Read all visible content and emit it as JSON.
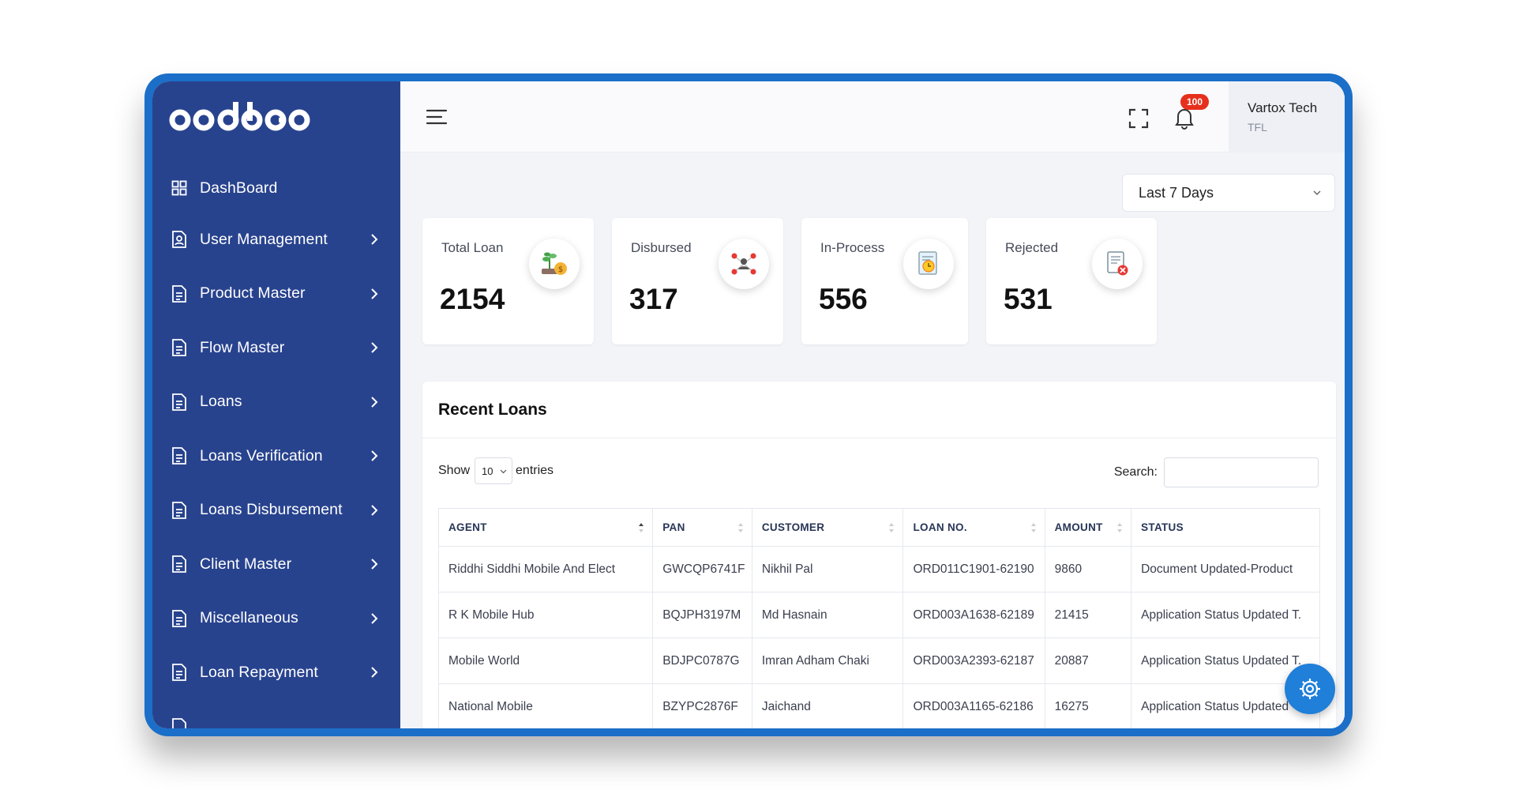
{
  "app": {
    "logo_text": "oodbogo"
  },
  "sidebar": {
    "items": [
      {
        "label": "DashBoard",
        "icon": "grid-icon"
      },
      {
        "label": "User Management",
        "icon": "user-doc-icon"
      },
      {
        "label": "Product Master",
        "icon": "document-icon"
      },
      {
        "label": "Flow Master",
        "icon": "document-icon"
      },
      {
        "label": "Loans",
        "icon": "document-icon"
      },
      {
        "label": "Loans Verification",
        "icon": "document-icon"
      },
      {
        "label": "Loans Disbursement",
        "icon": "document-icon"
      },
      {
        "label": "Client Master",
        "icon": "document-icon"
      },
      {
        "label": "Miscellaneous",
        "icon": "document-icon"
      },
      {
        "label": "Loan Repayment",
        "icon": "document-icon"
      }
    ]
  },
  "header": {
    "notifications_count": "100",
    "user_name": "Vartox Tech",
    "user_org": "TFL"
  },
  "filters": {
    "range": "Last 7 Days"
  },
  "stats": [
    {
      "label": "Total Loan",
      "value": "2154",
      "icon": "money-plant-icon"
    },
    {
      "label": "Disbursed",
      "value": "317",
      "icon": "network-people-icon"
    },
    {
      "label": "In-Process",
      "value": "556",
      "icon": "clock-document-icon"
    },
    {
      "label": "Rejected",
      "value": "531",
      "icon": "rejected-document-icon"
    }
  ],
  "recent_loans": {
    "title": "Recent Loans",
    "show_label": "Show",
    "entries_value": "10",
    "entries_label": "entries",
    "search_label": "Search:",
    "columns": [
      "Agent",
      "Pan",
      "Customer",
      "Loan No.",
      "Amount",
      "Status"
    ],
    "rows": [
      [
        "Riddhi Siddhi Mobile And Elect",
        "GWCQP6741F",
        "Nikhil Pal",
        "ORD011C1901-62190",
        "9860",
        "Document Updated-Product"
      ],
      [
        "R K Mobile Hub",
        "BQJPH3197M",
        "Md Hasnain",
        "ORD003A1638-62189",
        "21415",
        "Application Status Updated T."
      ],
      [
        "Mobile World",
        "BDJPC0787G",
        "Imran Adham Chaki",
        "ORD003A2393-62187",
        "20887",
        "Application Status Updated T."
      ],
      [
        "National Mobile",
        "BZYPC2876F",
        "Jaichand",
        "ORD003A1165-62186",
        "16275",
        "Application Status Updated"
      ]
    ]
  },
  "colors": {
    "sidebar": "#28438e",
    "frame": "#1b6fc8",
    "badge": "#e6301c",
    "fab": "#1f7fd9"
  }
}
